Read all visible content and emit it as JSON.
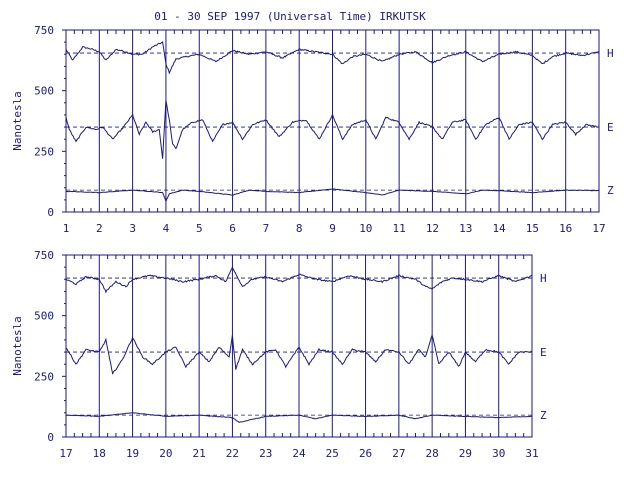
{
  "title": "01 - 30 SEP 1997 (Universal Time) IRKUTSK",
  "colors": {
    "ink": "#1a1a80",
    "background": "#ffffff"
  },
  "chart_data": [
    {
      "type": "line",
      "panel": "top",
      "xlabel": "",
      "ylabel": "Nanotesla",
      "xlim": [
        1,
        17
      ],
      "ylim": [
        0,
        750
      ],
      "x_ticks": [
        "1",
        "2",
        "3",
        "4",
        "5",
        "6",
        "7",
        "8",
        "9",
        "10",
        "11",
        "12",
        "13",
        "14",
        "15",
        "16",
        "17"
      ],
      "y_ticks": [
        "0",
        "250",
        "500",
        "750"
      ],
      "grid": "vertical lines at each day",
      "series": [
        {
          "name": "H",
          "baseline": 655,
          "x": [
            1,
            1.2,
            1.5,
            1.8,
            2.0,
            2.2,
            2.5,
            2.8,
            3.0,
            3.3,
            3.6,
            3.9,
            4.0,
            4.1,
            4.3,
            4.6,
            5.0,
            5.5,
            6.0,
            6.5,
            7.0,
            7.5,
            8.0,
            8.5,
            9.0,
            9.3,
            9.6,
            10.0,
            10.5,
            11.0,
            11.5,
            12.0,
            12.5,
            13.0,
            13.5,
            14.0,
            14.5,
            15.0,
            15.3,
            15.6,
            16.0,
            16.5,
            17.0
          ],
          "values": [
            670,
            625,
            680,
            670,
            660,
            625,
            670,
            660,
            650,
            650,
            680,
            700,
            610,
            575,
            630,
            640,
            650,
            620,
            665,
            650,
            660,
            635,
            670,
            660,
            650,
            610,
            640,
            650,
            620,
            650,
            660,
            615,
            645,
            660,
            620,
            650,
            660,
            645,
            610,
            640,
            655,
            645,
            660
          ]
        },
        {
          "name": "E",
          "baseline": 350,
          "x": [
            1,
            1.1,
            1.3,
            1.6,
            1.9,
            2.1,
            2.4,
            2.7,
            3.0,
            3.2,
            3.4,
            3.6,
            3.8,
            3.9,
            4.0,
            4.1,
            4.2,
            4.3,
            4.5,
            4.8,
            5.1,
            5.4,
            5.7,
            6.0,
            6.3,
            6.6,
            7.0,
            7.4,
            7.8,
            8.2,
            8.6,
            9.0,
            9.3,
            9.6,
            10.0,
            10.3,
            10.6,
            11.0,
            11.3,
            11.6,
            12.0,
            12.3,
            12.6,
            13.0,
            13.3,
            13.6,
            14.0,
            14.3,
            14.6,
            15.0,
            15.3,
            15.6,
            16.0,
            16.3,
            16.6,
            17.0
          ],
          "values": [
            390,
            340,
            290,
            350,
            340,
            350,
            300,
            345,
            400,
            320,
            370,
            330,
            340,
            220,
            460,
            380,
            280,
            260,
            340,
            370,
            380,
            290,
            360,
            370,
            300,
            360,
            380,
            310,
            370,
            380,
            300,
            400,
            300,
            360,
            380,
            300,
            390,
            370,
            300,
            370,
            350,
            300,
            370,
            380,
            300,
            360,
            390,
            300,
            360,
            370,
            300,
            360,
            370,
            320,
            360,
            350
          ]
        },
        {
          "name": "Z",
          "baseline": 90,
          "x": [
            1,
            2,
            2.5,
            3,
            3.5,
            3.9,
            4.0,
            4.1,
            4.5,
            5,
            6,
            6.5,
            7,
            8,
            9,
            10,
            10.5,
            11,
            12,
            13,
            13.5,
            14,
            15,
            16,
            17
          ],
          "values": [
            85,
            80,
            85,
            90,
            85,
            80,
            45,
            75,
            90,
            85,
            70,
            90,
            85,
            80,
            95,
            80,
            70,
            90,
            85,
            75,
            90,
            88,
            80,
            90,
            88
          ]
        }
      ],
      "series_labels": [
        "H",
        "E",
        "Z"
      ]
    },
    {
      "type": "line",
      "panel": "bottom",
      "xlabel": "",
      "ylabel": "Nanotesla",
      "xlim": [
        17,
        31
      ],
      "ylim": [
        0,
        750
      ],
      "x_ticks": [
        "17",
        "18",
        "19",
        "20",
        "21",
        "22",
        "23",
        "24",
        "25",
        "26",
        "27",
        "28",
        "29",
        "30",
        "31"
      ],
      "y_ticks": [
        "0",
        "250",
        "500",
        "750"
      ],
      "grid": "vertical lines at each day",
      "series": [
        {
          "name": "H",
          "baseline": 655,
          "x": [
            17,
            17.3,
            17.6,
            18.0,
            18.2,
            18.5,
            18.8,
            19.0,
            19.5,
            20.0,
            20.5,
            21.0,
            21.5,
            21.8,
            22.0,
            22.3,
            22.6,
            23.0,
            23.5,
            24.0,
            24.5,
            25.0,
            25.5,
            26.0,
            26.5,
            27.0,
            27.5,
            27.8,
            28.0,
            28.3,
            28.6,
            29.0,
            29.5,
            30.0,
            30.5,
            31.0
          ],
          "values": [
            650,
            630,
            660,
            650,
            600,
            640,
            620,
            650,
            665,
            655,
            640,
            650,
            665,
            640,
            700,
            620,
            650,
            660,
            640,
            670,
            650,
            640,
            665,
            650,
            640,
            665,
            650,
            620,
            610,
            640,
            655,
            650,
            640,
            665,
            640,
            665
          ]
        },
        {
          "name": "E",
          "baseline": 350,
          "x": [
            17,
            17.3,
            17.6,
            18.0,
            18.2,
            18.4,
            18.7,
            19.0,
            19.3,
            19.6,
            20.0,
            20.3,
            20.6,
            21.0,
            21.3,
            21.6,
            21.9,
            22.0,
            22.1,
            22.3,
            22.6,
            23.0,
            23.3,
            23.6,
            24.0,
            24.3,
            24.6,
            25.0,
            25.3,
            25.6,
            26.0,
            26.3,
            26.6,
            27.0,
            27.3,
            27.6,
            27.8,
            28.0,
            28.2,
            28.5,
            28.8,
            29.0,
            29.3,
            29.6,
            30.0,
            30.3,
            30.6,
            31.0
          ],
          "values": [
            370,
            300,
            360,
            350,
            400,
            260,
            320,
            410,
            330,
            300,
            350,
            370,
            290,
            350,
            310,
            370,
            330,
            420,
            280,
            360,
            300,
            350,
            360,
            290,
            370,
            300,
            360,
            350,
            300,
            360,
            350,
            310,
            360,
            350,
            300,
            360,
            330,
            420,
            300,
            350,
            290,
            350,
            310,
            360,
            350,
            300,
            350,
            350
          ]
        },
        {
          "name": "Z",
          "baseline": 90,
          "x": [
            17,
            18,
            19,
            20,
            21,
            22,
            22.2,
            23,
            24,
            24.5,
            25,
            26,
            27,
            27.5,
            28,
            29,
            30,
            31
          ],
          "values": [
            90,
            85,
            100,
            85,
            90,
            80,
            60,
            85,
            90,
            75,
            90,
            85,
            90,
            75,
            90,
            85,
            80,
            85
          ]
        }
      ],
      "series_labels": [
        "H",
        "E",
        "Z"
      ]
    }
  ]
}
